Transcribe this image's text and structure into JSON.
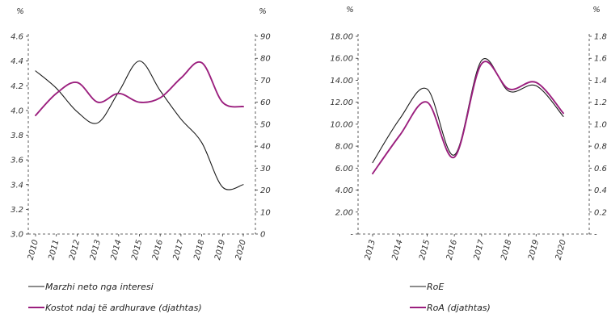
{
  "chart_data": [
    {
      "type": "line",
      "x": [
        "2010",
        "2011",
        "2012",
        "2013",
        "2014",
        "2015",
        "2016",
        "2017",
        "2018",
        "2019",
        "2020"
      ],
      "left_unit": "%",
      "right_unit": "%",
      "ylim_left": [
        3.0,
        4.6
      ],
      "ylim_right": [
        0,
        90
      ],
      "yticks_left": [
        "3.0",
        "3.2",
        "3.4",
        "3.6",
        "3.8",
        "4.0",
        "4.2",
        "4.4",
        "4.6"
      ],
      "yticks_right": [
        "0",
        "10",
        "20",
        "30",
        "40",
        "50",
        "60",
        "70",
        "80",
        "90"
      ],
      "series": [
        {
          "name": "Marzhi neto nga interesi",
          "axis": "left",
          "color": "#1a1a1a",
          "values": [
            4.32,
            4.18,
            3.99,
            3.9,
            4.15,
            4.4,
            4.16,
            3.93,
            3.74,
            3.38,
            3.4
          ]
        },
        {
          "name": "Kostot ndaj të ardhurave (djathtas)",
          "axis": "right",
          "color": "#9b1f7e",
          "values": [
            54,
            64,
            69,
            60,
            64,
            60,
            62,
            71,
            78,
            60,
            58
          ]
        }
      ]
    },
    {
      "type": "line",
      "x": [
        "2013",
        "2014",
        "2015",
        "2016",
        "2017",
        "2018",
        "2019",
        "2020"
      ],
      "left_unit": "%",
      "right_unit": "%",
      "ylim_left": [
        0,
        18
      ],
      "ylim_right": [
        0,
        1.8
      ],
      "yticks_left": [
        "-",
        "2.00",
        "4.00",
        "6.00",
        "8.00",
        "10.00",
        "12.00",
        "14.00",
        "16.00",
        "18.00"
      ],
      "yticks_right": [
        "-",
        "0.20",
        "0.40",
        "0.60",
        "0.80",
        "1.00",
        "1.20",
        "1.40",
        "1.60",
        "1.80"
      ],
      "series": [
        {
          "name": "RoE",
          "axis": "left",
          "color": "#1a1a1a",
          "values": [
            6.5,
            10.5,
            13.2,
            7.2,
            15.8,
            13.0,
            13.5,
            10.7
          ]
        },
        {
          "name": "RoA (djathtas)",
          "axis": "right",
          "color": "#9b1f7e",
          "values": [
            0.55,
            0.9,
            1.2,
            0.7,
            1.55,
            1.32,
            1.38,
            1.1
          ]
        }
      ]
    }
  ]
}
